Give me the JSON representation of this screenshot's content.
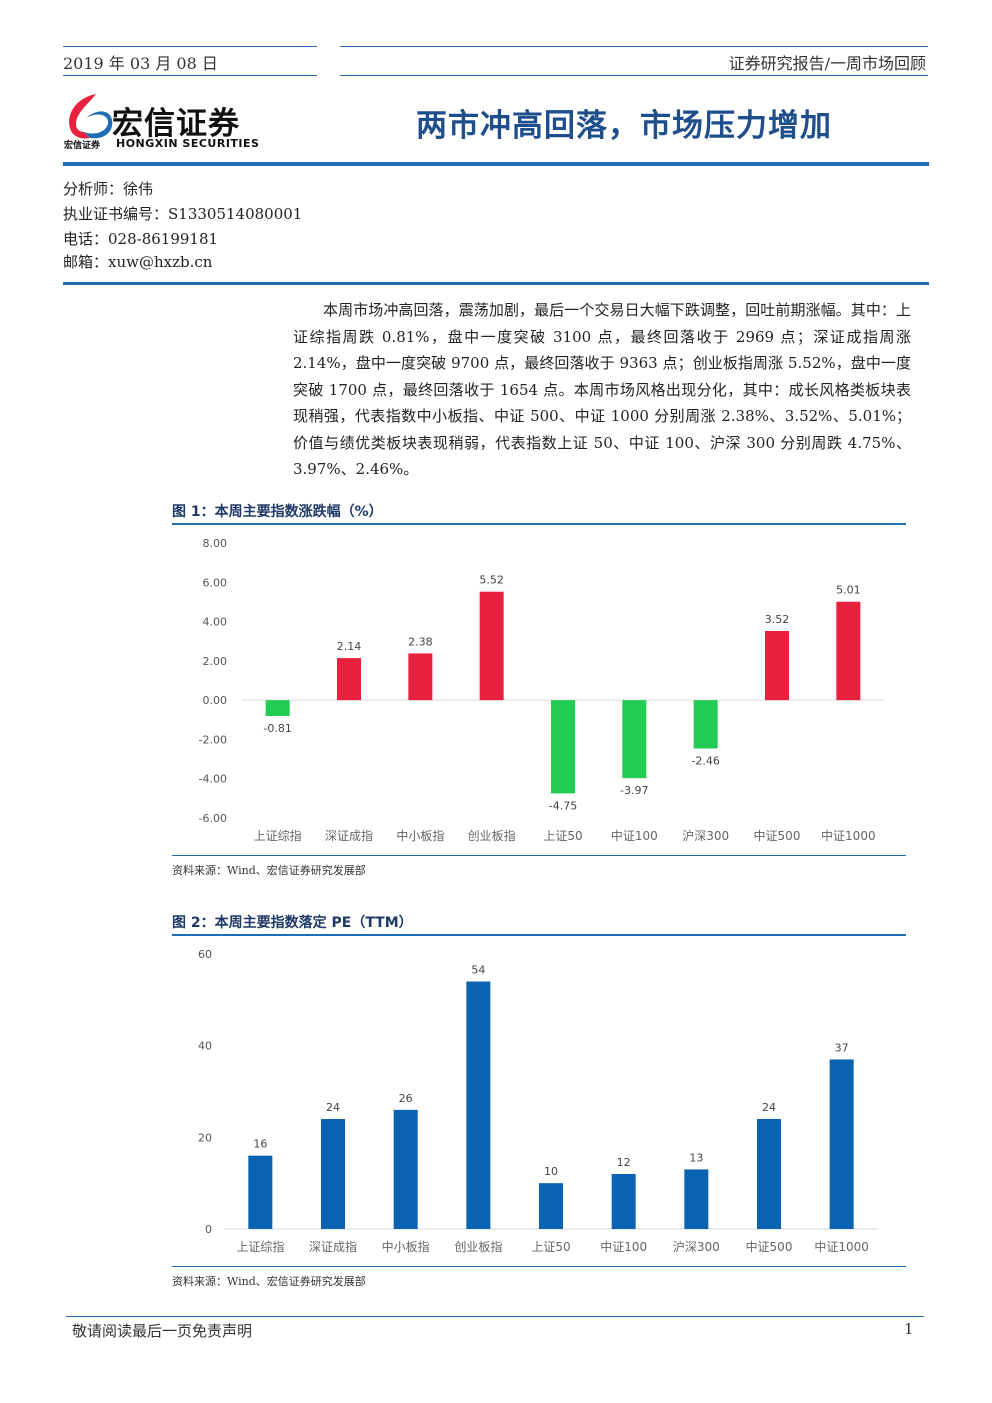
{
  "header": {
    "date": "2019 年 03 月 08 日",
    "category": "证券研究报告/一周市场回顾",
    "logo_cn": "宏信证券",
    "logo_sub_cn": "宏信证券",
    "logo_sub_en": "HONGXIN SECURITIES",
    "title": "两市冲高回落，市场压力增加"
  },
  "analyst": {
    "name_line": "分析师：徐伟",
    "cert_line": "执业证书编号：S1330514080001",
    "phone_line": "电话：028-86199181",
    "email_line": "邮箱：xuw@hxzb.cn"
  },
  "summary": "本周市场冲高回落，震荡加剧，最后一个交易日大幅下跌调整，回吐前期涨幅。其中：上证综指周跌 0.81%，盘中一度突破 3100 点，最终回落收于 2969 点；深证成指周涨 2.14%，盘中一度突破 9700 点，最终回落收于 9363 点；创业板指周涨 5.52%，盘中一度突破 1700 点，最终回落收于 1654 点。本周市场风格出现分化，其中：成长风格类板块表现稍强，代表指数中小板指、中证 500、中证 1000 分别周涨 2.38%、3.52%、5.01%；价值与绩优类板块表现稍弱，代表指数上证 50、中证 100、沪深 300 分别周跌 4.75%、3.97%、2.46%。",
  "figures": {
    "fig1_title": "图 1：本周主要指数涨跌幅（%）",
    "fig1_source": "资料来源：Wind、宏信证券研究发展部",
    "fig2_title": "图 2：本周主要指数落定 PE（TTM）",
    "fig2_source": "资料来源：Wind、宏信证券研究发展部"
  },
  "colors": {
    "up": "#e8213f",
    "down": "#22cc52",
    "pe": "#0a63b0",
    "accent": "#1f6db3"
  },
  "chart_data": [
    {
      "type": "bar",
      "categories": [
        "上证综指",
        "深证成指",
        "中小板指",
        "创业板指",
        "上证50",
        "中证100",
        "沪深300",
        "中证500",
        "中证1000"
      ],
      "values": [
        -0.81,
        2.14,
        2.38,
        5.52,
        -4.75,
        -3.97,
        -2.46,
        3.52,
        5.01
      ],
      "data_labels": [
        "-0.81",
        "2.14",
        "2.38",
        "5.52",
        "-4.75",
        "-3.97",
        "-2.46",
        "3.52",
        "5.01"
      ],
      "yticks": [
        "8.00",
        "6.00",
        "4.00",
        "2.00",
        "0.00",
        "-2.00",
        "-4.00",
        "-6.00"
      ],
      "ylim": [
        -6,
        8
      ],
      "title": "",
      "xlabel": "",
      "ylabel": "",
      "grid": false
    },
    {
      "type": "bar",
      "categories": [
        "上证综指",
        "深证成指",
        "中小板指",
        "创业板指",
        "上证50",
        "中证100",
        "沪深300",
        "中证500",
        "中证1000"
      ],
      "values": [
        16,
        24,
        26,
        54,
        10,
        12,
        13,
        24,
        37
      ],
      "data_labels": [
        "16",
        "24",
        "26",
        "54",
        "10",
        "12",
        "13",
        "24",
        "37"
      ],
      "yticks": [
        "60",
        "40",
        "20",
        "0"
      ],
      "ylim": [
        0,
        60
      ],
      "title": "",
      "xlabel": "",
      "ylabel": "",
      "grid": false
    }
  ],
  "footer": {
    "disclaimer": "敬请阅读最后一页免责声明",
    "page": "1"
  }
}
